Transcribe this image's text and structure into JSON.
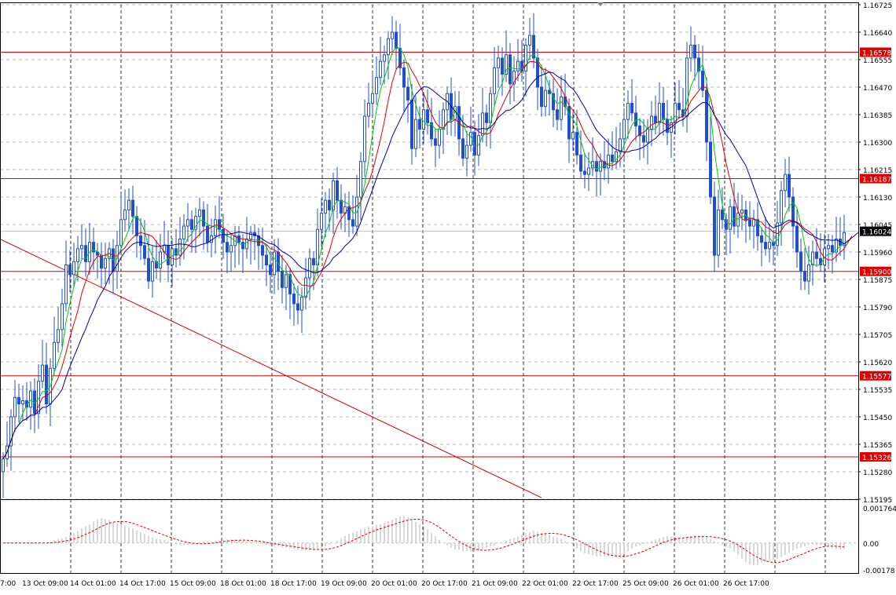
{
  "chart_data": {
    "type": "candlestick",
    "symbol_panel": "price",
    "y_axis": {
      "min": 1.15195,
      "max": 1.16725,
      "ticks": [
        "1.16725",
        "1.16640",
        "1.16555",
        "1.16470",
        "1.16385",
        "1.16300",
        "1.16215",
        "1.16130",
        "1.16045",
        "1.15960",
        "1.15875",
        "1.15790",
        "1.15705",
        "1.15620",
        "1.15535",
        "1.15450",
        "1.15365",
        "1.15280",
        "1.15195"
      ]
    },
    "x_axis": {
      "ticks": [
        "13 Oct 09:00",
        "14 Oct 01:00",
        "14 Oct 17:00",
        "15 Oct 09:00",
        "18 Oct 01:00",
        "18 Oct 17:00",
        "19 Oct 09:00",
        "20 Oct 01:00",
        "20 Oct 17:00",
        "21 Oct 09:00",
        "22 Oct 01:00",
        "22 Oct 17:00",
        "25 Oct 09:00",
        "26 Oct 01:00",
        "26 Oct 17:00"
      ],
      "left_edge_label": "7:00"
    },
    "horizontal_levels": [
      {
        "value": 1.16578,
        "label": "1.16578",
        "color": "#e00000"
      },
      {
        "value": 1.16187,
        "label": "1.16187",
        "color": "#e00000"
      },
      {
        "value": 1.159,
        "label": "1.15900",
        "color": "#e00000"
      },
      {
        "value": 1.15577,
        "label": "1.15577",
        "color": "#e00000"
      },
      {
        "value": 1.15326,
        "label": "1.15326",
        "color": "#e00000"
      }
    ],
    "current_price": {
      "value": 1.16024,
      "label": "1.16024"
    },
    "trendline": {
      "from": {
        "bar": 0,
        "price": 1.16
      },
      "to": {
        "bar": 164,
        "price": 1.152
      },
      "color": "#d00000"
    },
    "series_colors": {
      "candles": "#1f4fd0",
      "ma_fast": "#00cc00",
      "ma_mid": "#e00000",
      "ma_slow": "#0000aa",
      "grid": "#b8b8b8",
      "vgrid": "#303030"
    },
    "price_closes": [
      1.1532,
      1.1536,
      1.1545,
      1.1551,
      1.1549,
      1.155,
      1.1548,
      1.1553,
      1.1546,
      1.1556,
      1.1561,
      1.1549,
      1.156,
      1.1568,
      1.1572,
      1.158,
      1.1592,
      1.1589,
      1.1593,
      1.1597,
      1.1598,
      1.1593,
      1.1599,
      1.1596,
      1.1595,
      1.1591,
      1.1594,
      1.1597,
      1.159,
      1.1598,
      1.1606,
      1.1609,
      1.1612,
      1.1607,
      1.1601,
      1.1598,
      1.1594,
      1.1587,
      1.1593,
      1.1591,
      1.1596,
      1.1598,
      1.1592,
      1.1597,
      1.1595,
      1.16,
      1.1604,
      1.1606,
      1.1603,
      1.1607,
      1.1609,
      1.1604,
      1.1599,
      1.1601,
      1.1606,
      1.1603,
      1.1599,
      1.1596,
      1.1598,
      1.1601,
      1.1599,
      1.1597,
      1.16,
      1.1602,
      1.1601,
      1.1598,
      1.1595,
      1.1592,
      1.1589,
      1.1596,
      1.159,
      1.1585,
      1.1589,
      1.1583,
      1.158,
      1.1578,
      1.1582,
      1.1588,
      1.1594,
      1.1592,
      1.1603,
      1.1608,
      1.1612,
      1.1609,
      1.1618,
      1.1612,
      1.1608,
      1.161,
      1.1606,
      1.1604,
      1.1613,
      1.1624,
      1.1638,
      1.1642,
      1.1645,
      1.165,
      1.1655,
      1.1657,
      1.1662,
      1.1664,
      1.1659,
      1.1653,
      1.1647,
      1.1643,
      1.1628,
      1.1637,
      1.1634,
      1.164,
      1.1636,
      1.1631,
      1.1629,
      1.1634,
      1.164,
      1.1645,
      1.1637,
      1.1641,
      1.1631,
      1.1625,
      1.1629,
      1.1633,
      1.1626,
      1.1632,
      1.1639,
      1.1636,
      1.1645,
      1.1653,
      1.1656,
      1.1651,
      1.1657,
      1.1648,
      1.1652,
      1.1655,
      1.1652,
      1.166,
      1.1663,
      1.1656,
      1.1647,
      1.1641,
      1.1646,
      1.1645,
      1.164,
      1.1637,
      1.1644,
      1.1641,
      1.1631,
      1.1633,
      1.1626,
      1.1621,
      1.162,
      1.1622,
      1.1624,
      1.1621,
      1.1624,
      1.1622,
      1.1626,
      1.1624,
      1.1627,
      1.1631,
      1.1637,
      1.1642,
      1.1639,
      1.1635,
      1.1632,
      1.163,
      1.1634,
      1.1638,
      1.1636,
      1.1642,
      1.1637,
      1.1633,
      1.1636,
      1.1642,
      1.164,
      1.1638,
      1.1656,
      1.166,
      1.1656,
      1.1652,
      1.1646,
      1.163,
      1.1613,
      1.1595,
      1.1609,
      1.1606,
      1.1603,
      1.161,
      1.1604,
      1.1608,
      1.1609,
      1.1606,
      1.1604,
      1.1606,
      1.1601,
      1.1599,
      1.1597,
      1.1599,
      1.1598,
      1.1605,
      1.1615,
      1.162,
      1.1613,
      1.1604,
      1.1596,
      1.159,
      1.1587,
      1.1592,
      1.1596,
      1.1594,
      1.1592,
      1.1597,
      1.1598,
      1.1596,
      1.16,
      1.1598,
      1.1602
    ],
    "oscillator_panel": {
      "y_ticks": [
        "0.001764",
        "0.00",
        "-0.00178"
      ],
      "max": 0.001764,
      "min": -0.00178
    }
  }
}
